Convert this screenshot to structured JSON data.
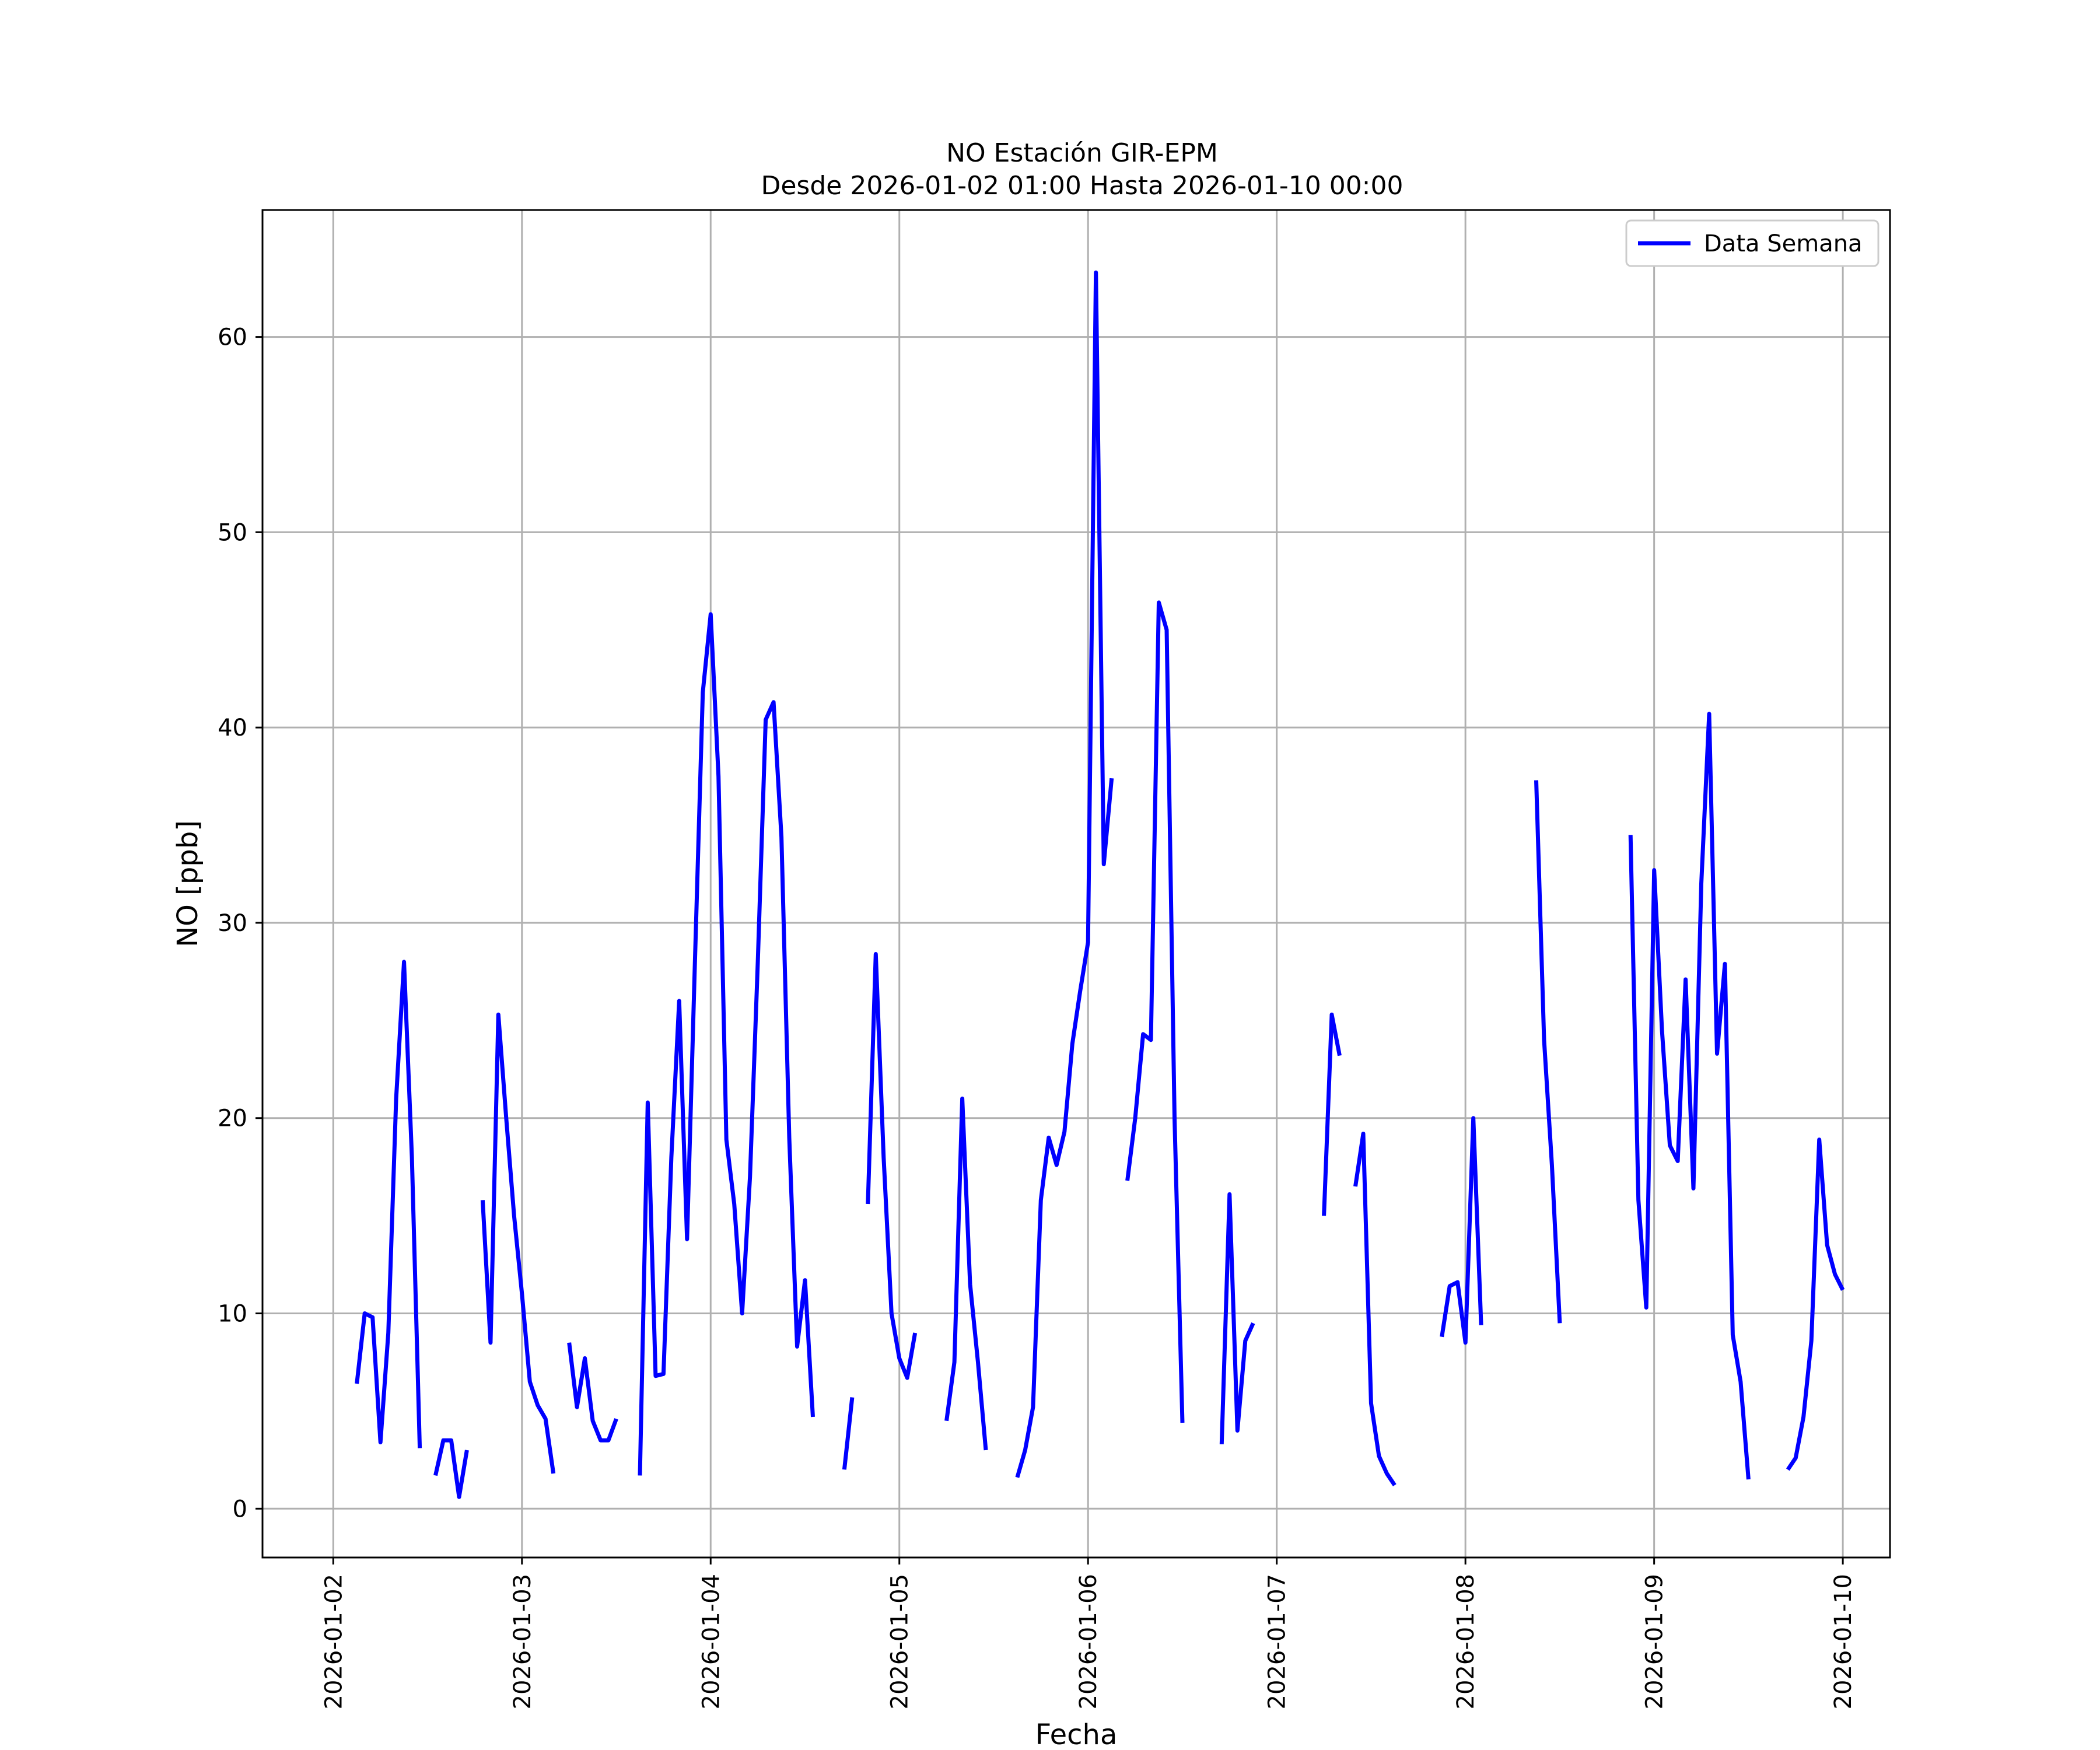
{
  "chart_data": {
    "type": "line",
    "title": "NO Estación GIR-EPM",
    "subtitle": "Desde 2026-01-02 01:00 Hasta 2026-01-10 00:00",
    "xlabel": "Fecha",
    "ylabel": "NO [ppb]",
    "xlim": [
      "2026-01-01 15:00",
      "2026-01-10 06:00"
    ],
    "ylim": [
      -2.5,
      66.5
    ],
    "x_ticks": [
      "2026-01-02",
      "2026-01-03",
      "2026-01-04",
      "2026-01-05",
      "2026-01-06",
      "2026-01-07",
      "2026-01-08",
      "2026-01-09",
      "2026-01-10"
    ],
    "y_ticks": [
      0,
      10,
      20,
      30,
      40,
      50,
      60
    ],
    "grid": true,
    "legend": "top-right",
    "colors": {
      "line": "#0000ff",
      "grid": "#b0b0b0"
    },
    "series": [
      {
        "name": "Data Semana",
        "segments": [
          [
            [
              "2026-01-02 03:00",
              6.4
            ],
            [
              "2026-01-02 04:00",
              10.0
            ],
            [
              "2026-01-02 05:00",
              9.8
            ],
            [
              "2026-01-02 06:00",
              3.4
            ],
            [
              "2026-01-02 07:00",
              9.0
            ],
            [
              "2026-01-02 08:00",
              21.0
            ],
            [
              "2026-01-02 09:00",
              28.0
            ],
            [
              "2026-01-02 10:00",
              18.0
            ],
            [
              "2026-01-02 11:00",
              3.1
            ]
          ],
          [
            [
              "2026-01-02 13:00",
              1.7
            ],
            [
              "2026-01-02 14:00",
              3.5
            ],
            [
              "2026-01-02 15:00",
              3.5
            ],
            [
              "2026-01-02 16:00",
              0.6
            ],
            [
              "2026-01-02 17:00",
              3.0
            ]
          ],
          [
            [
              "2026-01-02 19:00",
              15.8
            ],
            [
              "2026-01-02 20:00",
              8.5
            ],
            [
              "2026-01-02 21:00",
              25.3
            ],
            [
              "2026-01-02 22:00",
              20.0
            ],
            [
              "2026-01-02 23:00",
              15.0
            ],
            [
              "2026-01-03 00:00",
              11.0
            ],
            [
              "2026-01-03 01:00",
              6.5
            ],
            [
              "2026-01-03 02:00",
              5.3
            ],
            [
              "2026-01-03 03:00",
              4.6
            ],
            [
              "2026-01-03 04:00",
              1.8
            ]
          ],
          [
            [
              "2026-01-03 06:00",
              8.5
            ],
            [
              "2026-01-03 07:00",
              5.2
            ],
            [
              "2026-01-03 08:00",
              7.7
            ],
            [
              "2026-01-03 09:00",
              4.5
            ],
            [
              "2026-01-03 10:00",
              3.5
            ],
            [
              "2026-01-03 11:00",
              3.5
            ],
            [
              "2026-01-03 12:00",
              4.6
            ]
          ],
          [
            [
              "2026-01-03 15:00",
              1.7
            ],
            [
              "2026-01-03 16:00",
              20.8
            ],
            [
              "2026-01-03 17:00",
              6.8
            ],
            [
              "2026-01-03 18:00",
              6.9
            ],
            [
              "2026-01-03 19:00",
              18.0
            ],
            [
              "2026-01-03 20:00",
              26.0
            ],
            [
              "2026-01-03 21:00",
              13.8
            ],
            [
              "2026-01-03 22:00",
              28.0
            ],
            [
              "2026-01-03 23:00",
              41.8
            ],
            [
              "2026-01-04 00:00",
              45.8
            ],
            [
              "2026-01-04 01:00",
              37.5
            ],
            [
              "2026-01-04 02:00",
              18.9
            ],
            [
              "2026-01-04 03:00",
              15.6
            ],
            [
              "2026-01-04 04:00",
              10.0
            ],
            [
              "2026-01-04 05:00",
              17.0
            ],
            [
              "2026-01-04 06:00",
              28.0
            ],
            [
              "2026-01-04 07:00",
              40.4
            ],
            [
              "2026-01-04 08:00",
              41.3
            ],
            [
              "2026-01-04 09:00",
              34.4
            ],
            [
              "2026-01-04 10:00",
              19.0
            ],
            [
              "2026-01-04 11:00",
              8.3
            ],
            [
              "2026-01-04 12:00",
              11.7
            ],
            [
              "2026-01-04 13:00",
              4.7
            ]
          ],
          [
            [
              "2026-01-04 17:00",
              2.0
            ],
            [
              "2026-01-04 18:00",
              5.7
            ]
          ],
          [
            [
              "2026-01-04 20:00",
              15.6
            ],
            [
              "2026-01-04 21:00",
              28.4
            ],
            [
              "2026-01-04 22:00",
              18.0
            ],
            [
              "2026-01-04 23:00",
              10.0
            ],
            [
              "2026-01-05 00:00",
              7.7
            ],
            [
              "2026-01-05 01:00",
              6.7
            ],
            [
              "2026-01-05 02:00",
              9.0
            ]
          ],
          [
            [
              "2026-01-05 06:00",
              4.5
            ],
            [
              "2026-01-05 07:00",
              7.5
            ],
            [
              "2026-01-05 08:00",
              21.0
            ],
            [
              "2026-01-05 09:00",
              11.5
            ],
            [
              "2026-01-05 10:00",
              7.5
            ],
            [
              "2026-01-05 11:00",
              3.0
            ]
          ],
          [
            [
              "2026-01-05 15:00",
              1.6
            ],
            [
              "2026-01-05 16:00",
              3.0
            ],
            [
              "2026-01-05 17:00",
              5.2
            ],
            [
              "2026-01-05 18:00",
              15.8
            ],
            [
              "2026-01-05 19:00",
              19.0
            ],
            [
              "2026-01-05 20:00",
              17.6
            ],
            [
              "2026-01-05 21:00",
              19.3
            ],
            [
              "2026-01-05 22:00",
              23.8
            ],
            [
              "2026-01-05 23:00",
              26.5
            ],
            [
              "2026-01-06 00:00",
              29.0
            ],
            [
              "2026-01-06 01:00",
              63.3
            ],
            [
              "2026-01-06 02:00",
              33.0
            ],
            [
              "2026-01-06 03:00",
              37.4
            ]
          ],
          [
            [
              "2026-01-06 05:00",
              16.8
            ],
            [
              "2026-01-06 06:00",
              20.0
            ],
            [
              "2026-01-06 07:00",
              24.3
            ],
            [
              "2026-01-06 08:00",
              24.0
            ],
            [
              "2026-01-06 09:00",
              46.4
            ],
            [
              "2026-01-06 10:00",
              45.0
            ],
            [
              "2026-01-06 11:00",
              20.0
            ],
            [
              "2026-01-06 12:00",
              4.4
            ]
          ],
          [
            [
              "2026-01-06 17:00",
              3.3
            ],
            [
              "2026-01-06 18:00",
              16.1
            ],
            [
              "2026-01-06 19:00",
              4.0
            ],
            [
              "2026-01-06 20:00",
              8.6
            ],
            [
              "2026-01-06 21:00",
              9.5
            ]
          ],
          [
            [
              "2026-01-07 06:00",
              15.0
            ],
            [
              "2026-01-07 07:00",
              25.3
            ],
            [
              "2026-01-07 08:00",
              23.2
            ]
          ],
          [
            [
              "2026-01-07 10:00",
              16.5
            ],
            [
              "2026-01-07 11:00",
              19.2
            ],
            [
              "2026-01-07 12:00",
              5.4
            ],
            [
              "2026-01-07 13:00",
              2.7
            ],
            [
              "2026-01-07 14:00",
              1.8
            ],
            [
              "2026-01-07 15:00",
              1.2
            ]
          ],
          [
            [
              "2026-01-07 21:00",
              8.8
            ],
            [
              "2026-01-07 22:00",
              11.4
            ],
            [
              "2026-01-07 23:00",
              11.6
            ],
            [
              "2026-01-08 00:00",
              8.5
            ],
            [
              "2026-01-08 01:00",
              20.0
            ],
            [
              "2026-01-08 02:00",
              9.4
            ]
          ],
          [
            [
              "2026-01-08 09:00",
              37.3
            ],
            [
              "2026-01-08 10:00",
              24.0
            ],
            [
              "2026-01-08 11:00",
              17.6
            ],
            [
              "2026-01-08 12:00",
              9.5
            ]
          ],
          [
            [
              "2026-01-08 21:00",
              34.5
            ],
            [
              "2026-01-08 22:00",
              15.8
            ],
            [
              "2026-01-08 23:00",
              10.3
            ],
            [
              "2026-01-09 00:00",
              32.7
            ],
            [
              "2026-01-09 01:00",
              24.5
            ],
            [
              "2026-01-09 02:00",
              18.6
            ],
            [
              "2026-01-09 03:00",
              17.8
            ],
            [
              "2026-01-09 04:00",
              27.1
            ],
            [
              "2026-01-09 05:00",
              16.4
            ],
            [
              "2026-01-09 06:00",
              32.0
            ],
            [
              "2026-01-09 07:00",
              40.7
            ],
            [
              "2026-01-09 08:00",
              23.3
            ],
            [
              "2026-01-09 09:00",
              27.9
            ],
            [
              "2026-01-09 10:00",
              8.9
            ],
            [
              "2026-01-09 11:00",
              6.5
            ],
            [
              "2026-01-09 12:00",
              1.5
            ]
          ],
          [
            [
              "2026-01-09 17:00",
              2.0
            ],
            [
              "2026-01-09 18:00",
              2.6
            ],
            [
              "2026-01-09 19:00",
              4.7
            ],
            [
              "2026-01-09 20:00",
              8.6
            ],
            [
              "2026-01-09 21:00",
              18.9
            ],
            [
              "2026-01-09 22:00",
              13.5
            ],
            [
              "2026-01-09 23:00",
              12.0
            ],
            [
              "2026-01-10 00:00",
              11.2
            ]
          ]
        ]
      }
    ]
  }
}
